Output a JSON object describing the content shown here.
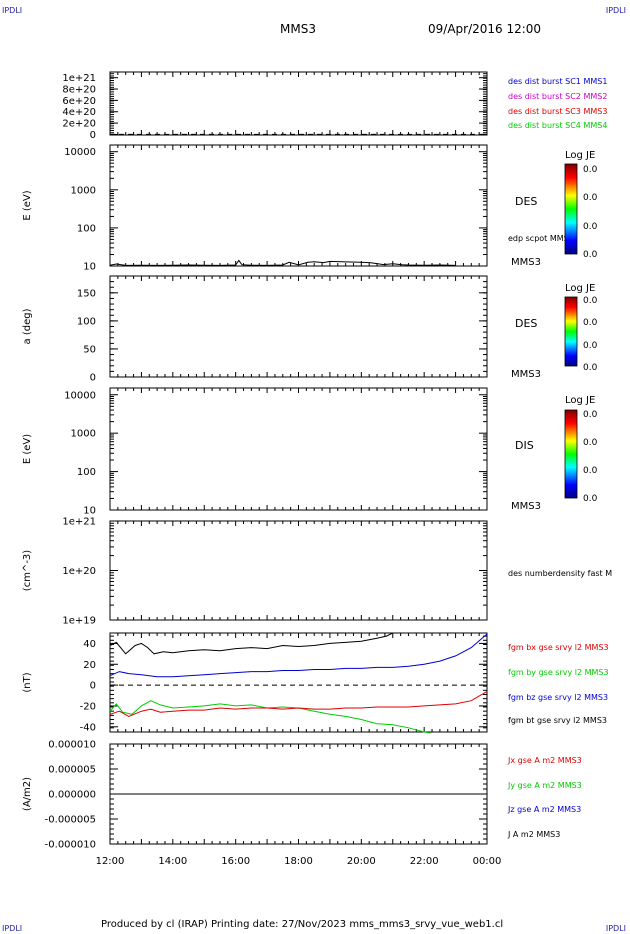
{
  "corner_label": "IPDLI",
  "header": {
    "spacecraft": "MMS3",
    "datetime": "09/Apr/2016 12:00"
  },
  "footer": {
    "text": "Produced by cl (IRAP)   Printing date: 27/Nov/2023   mms_mms3_srvy_vue_web1.cl"
  },
  "chart_data": [
    {
      "type": "line",
      "ylabel": "",
      "ylim": [
        -1e+19,
        1.1e+21
      ],
      "yticks": [
        {
          "v": 1e+21,
          "label": "1e+21"
        },
        {
          "v": 8e+20,
          "label": "8e+20"
        },
        {
          "v": 6e+20,
          "label": "6e+20"
        },
        {
          "v": 4e+20,
          "label": "4e+20"
        },
        {
          "v": 2e+20,
          "label": "2e+20"
        },
        {
          "v": 0,
          "label": "0"
        }
      ],
      "zero_line": true,
      "legend": [
        {
          "label": "des dist burst SC1 MMS1",
          "color": "#0000cc"
        },
        {
          "label": "des dist burst SC2 MMS2",
          "color": "#cc00cc"
        },
        {
          "label": "des dist burst SC3 MMS3",
          "color": "#dd0000"
        },
        {
          "label": "des dist burst SC4 MMS4",
          "color": "#00cc00"
        }
      ]
    },
    {
      "type": "heatmap",
      "ylabel": "E (eV)",
      "yscale": "log",
      "ylim": [
        10,
        15000
      ],
      "yticks": [
        {
          "v": 10000,
          "label": "10000"
        },
        {
          "v": 1000,
          "label": "1000"
        },
        {
          "v": 100,
          "label": "100"
        },
        {
          "v": 10,
          "label": "10"
        }
      ],
      "instrument": "DES",
      "spacecraft": "MMS3",
      "overlay": {
        "label": "edp scpot MMS3",
        "color": "#000000",
        "x": [
          12.0,
          12.2,
          12.5,
          13.0,
          13.5,
          14.0,
          14.5,
          15.0,
          15.5,
          16.0,
          16.1,
          16.2,
          16.5,
          17.0,
          17.5,
          17.7,
          18.0,
          18.3,
          18.5,
          18.8,
          19.0,
          19.5,
          20.0,
          20.3,
          20.7,
          21.0,
          21.3,
          21.5,
          22.0,
          22.5,
          23.0
        ],
        "y": [
          10.5,
          11.3,
          10.4,
          10.5,
          10.4,
          10.5,
          10.6,
          10.5,
          10.4,
          10.6,
          14.0,
          10.8,
          10.5,
          10.4,
          10.6,
          12.5,
          10.7,
          12.5,
          13.0,
          12.3,
          13.2,
          12.8,
          12.6,
          12.2,
          10.9,
          11.5,
          10.8,
          10.6,
          10.5,
          10.6,
          10.4
        ]
      },
      "colorbar": {
        "title": "Log JE",
        "labels": [
          "0.0",
          "0.0",
          "0.0",
          "0.0"
        ]
      }
    },
    {
      "type": "heatmap",
      "ylabel": "a (deg)",
      "ylim": [
        0,
        180
      ],
      "yticks": [
        {
          "v": 150,
          "label": "150"
        },
        {
          "v": 100,
          "label": "100"
        },
        {
          "v": 50,
          "label": "50"
        },
        {
          "v": 0,
          "label": "0"
        }
      ],
      "instrument": "DES",
      "spacecraft": "MMS3",
      "colorbar": {
        "title": "Log JE",
        "labels": [
          "0.0",
          "0.0",
          "0.0",
          "0.0"
        ]
      }
    },
    {
      "type": "heatmap",
      "ylabel": "E (eV)",
      "yscale": "log",
      "ylim": [
        10,
        15000
      ],
      "yticks": [
        {
          "v": 10000,
          "label": "10000"
        },
        {
          "v": 1000,
          "label": "1000"
        },
        {
          "v": 100,
          "label": "100"
        },
        {
          "v": 10,
          "label": "10"
        }
      ],
      "instrument": "DIS",
      "spacecraft": "MMS3",
      "colorbar": {
        "title": "Log JE",
        "labels": [
          "0.0",
          "0.0",
          "0.0",
          "0.0"
        ]
      }
    },
    {
      "type": "line",
      "ylabel": "(cm^-3)",
      "yscale": "log",
      "ylim": [
        1e+19,
        1e+21
      ],
      "yticks": [
        {
          "v": 1e+21,
          "label": "1e+21"
        },
        {
          "v": 1e+20,
          "label": "1e+20"
        },
        {
          "v": 1e+19,
          "label": "1e+19"
        }
      ],
      "legend": [
        {
          "label": "des numberdensity fast M",
          "color": "#000000"
        }
      ]
    },
    {
      "type": "line",
      "ylabel": "(nT)",
      "ylim": [
        -45,
        50
      ],
      "yticks": [
        {
          "v": 40,
          "label": "40"
        },
        {
          "v": 20,
          "label": "20"
        },
        {
          "v": 0,
          "label": "0"
        },
        {
          "v": -20,
          "label": "-20"
        },
        {
          "v": -40,
          "label": "-40"
        }
      ],
      "zero_line": true,
      "legend": [
        {
          "label": "fgm bx gse srvy l2 MMS3",
          "color": "#dd0000"
        },
        {
          "label": "fgm by gse srvy l2 MMS3",
          "color": "#00cc00"
        },
        {
          "label": "fgm bz gse srvy l2 MMS3",
          "color": "#0000cc"
        },
        {
          "label": "fgm bt gse srvy l2 MMS3",
          "color": "#000000"
        }
      ],
      "series": [
        {
          "name": "fgm bt gse srvy l2 MMS3",
          "color": "#000000",
          "x": [
            12.0,
            12.2,
            12.5,
            12.8,
            13.0,
            13.2,
            13.4,
            13.7,
            14.0,
            14.5,
            15.0,
            15.5,
            16.0,
            16.5,
            17.0,
            17.5,
            18.0,
            18.5,
            19.0,
            19.5,
            20.0,
            20.5,
            20.8,
            21.0
          ],
          "y": [
            38,
            41,
            30,
            38,
            40,
            36,
            30,
            32,
            31,
            33,
            34,
            33,
            35,
            36,
            35,
            38,
            37,
            38,
            40,
            41,
            42,
            45,
            47,
            50
          ]
        },
        {
          "name": "fgm bz gse srvy l2 MMS3",
          "color": "#0000cc",
          "x": [
            12.0,
            12.3,
            12.6,
            13.0,
            13.5,
            14.0,
            14.5,
            15.0,
            15.5,
            16.0,
            16.5,
            17.0,
            17.5,
            18.0,
            18.5,
            19.0,
            19.5,
            20.0,
            20.5,
            21.0,
            21.5,
            22.0,
            22.5,
            23.0,
            23.5,
            24.0
          ],
          "y": [
            9,
            13,
            11,
            10,
            8,
            8,
            9,
            10,
            11,
            12,
            13,
            13,
            14,
            14,
            15,
            15,
            16,
            16,
            17,
            17,
            18,
            20,
            23,
            28,
            36,
            49
          ]
        },
        {
          "name": "fgm by gse srvy l2 MMS3",
          "color": "#00cc00",
          "x": [
            12.0,
            12.2,
            12.4,
            12.7,
            13.0,
            13.3,
            13.6,
            14.0,
            14.5,
            15.0,
            15.5,
            16.0,
            16.5,
            17.0,
            17.5,
            18.0,
            18.5,
            19.0,
            19.5,
            20.0,
            20.5,
            21.0,
            21.5,
            22.0,
            22.2
          ],
          "y": [
            -25,
            -18,
            -26,
            -28,
            -20,
            -15,
            -19,
            -22,
            -21,
            -20,
            -18,
            -20,
            -19,
            -22,
            -21,
            -22,
            -25,
            -28,
            -30,
            -33,
            -37,
            -38,
            -41,
            -45,
            -46
          ]
        },
        {
          "name": "fgm bx gse srvy l2 MMS3",
          "color": "#dd0000",
          "x": [
            12.0,
            12.3,
            12.6,
            13.0,
            13.3,
            13.6,
            14.0,
            14.5,
            15.0,
            15.5,
            16.0,
            16.5,
            17.0,
            17.5,
            18.0,
            18.5,
            19.0,
            19.5,
            20.0,
            20.5,
            21.0,
            21.5,
            22.0,
            22.5,
            23.0,
            23.5,
            24.0
          ],
          "y": [
            -28,
            -25,
            -30,
            -25,
            -23,
            -26,
            -25,
            -24,
            -24,
            -22,
            -23,
            -22,
            -22,
            -23,
            -22,
            -23,
            -23,
            -22,
            -22,
            -21,
            -21,
            -21,
            -20,
            -19,
            -18,
            -15,
            -6
          ]
        }
      ]
    },
    {
      "type": "line",
      "ylabel": "(A/m2)",
      "ylim": [
        -1e-05,
        1e-05
      ],
      "yticks": [
        {
          "v": 1e-05,
          "label": "0.000010"
        },
        {
          "v": 5e-06,
          "label": "0.000005"
        },
        {
          "v": 0,
          "label": "0.000000"
        },
        {
          "v": -5e-06,
          "label": "-0.000005"
        },
        {
          "v": -1e-05,
          "label": "-0.000010"
        }
      ],
      "legend": [
        {
          "label": "Jx gse A m2 MMS3",
          "color": "#dd0000"
        },
        {
          "label": "Jy gse A m2 MMS3",
          "color": "#00cc00"
        },
        {
          "label": "Jz gse A m2 MMS3",
          "color": "#0000cc"
        },
        {
          "label": "J A m2 MMS3",
          "color": "#000000"
        }
      ],
      "series": [
        {
          "name": "J A m2 MMS3",
          "color": "#000000",
          "x": [
            12,
            24
          ],
          "y": [
            0,
            0
          ]
        }
      ]
    }
  ],
  "time_axis": {
    "x_range": [
      12,
      24
    ],
    "ticks": [
      {
        "v": 12,
        "label": "12:00"
      },
      {
        "v": 14,
        "label": "14:00"
      },
      {
        "v": 16,
        "label": "16:00"
      },
      {
        "v": 18,
        "label": "18:00"
      },
      {
        "v": 20,
        "label": "20:00"
      },
      {
        "v": 22,
        "label": "22:00"
      },
      {
        "v": 24,
        "label": "00:00"
      }
    ]
  }
}
